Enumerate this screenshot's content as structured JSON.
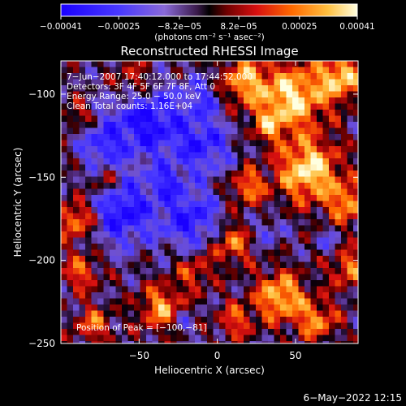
{
  "chart_data": {
    "type": "heatmap",
    "title": "Reconstructed RHESSI Image",
    "xlabel": "Heliocentric X (arcsec)",
    "ylabel": "Heliocentric Y (arcsec)",
    "xlim": [
      -100,
      90
    ],
    "ylim": [
      -250,
      -80
    ],
    "x_ticks": [
      -50,
      0,
      50
    ],
    "x_tick_labels": [
      "−50",
      "0",
      "50"
    ],
    "y_ticks": [
      -100,
      -150,
      -200,
      -250
    ],
    "y_tick_labels": [
      "−100",
      "−150",
      "−200",
      "−250"
    ],
    "colorbar": {
      "range": [
        -0.00041,
        0.00041
      ],
      "ticks": [
        -0.00041,
        -0.00025,
        -8.2e-05,
        8.2e-05,
        0.00025,
        0.00041
      ],
      "tick_labels": [
        "−0.00041",
        "−0.00025",
        "−8.2e−05",
        "8.2e−05",
        "0.00025",
        "0.00041"
      ],
      "unit_label": "(photons cm⁻² s⁻¹ asec⁻²)"
    },
    "annotations": [
      "7−Jun−2007 17:40:12.000 to 17:44:52.000",
      "Detectors: 3F 4F 5F 6F 7F 8F, Att 0",
      "Energy Range: 25.0 − 50.0 keV",
      "Clean     Total counts: 1.16E+04"
    ],
    "peak_label": "Position of Peak = [−100,−81]",
    "peak": [
      -100,
      -81
    ]
  },
  "footer": {
    "date": "6−May−2022 12:15"
  }
}
